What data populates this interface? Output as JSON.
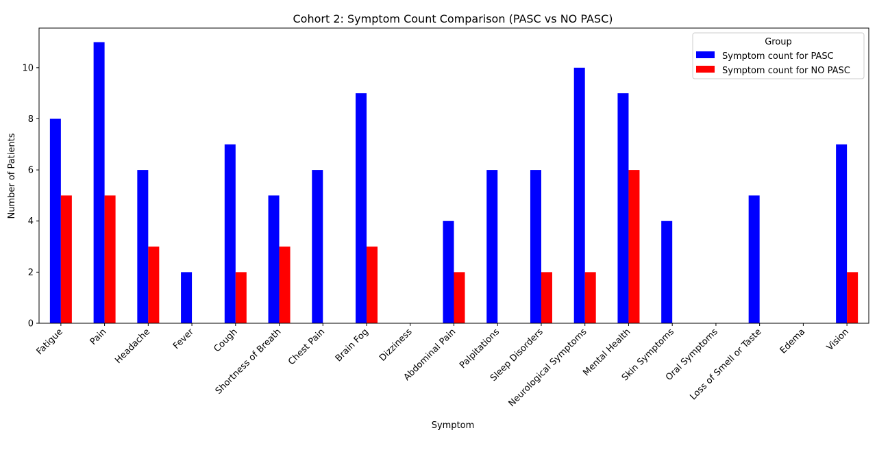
{
  "chart_data": {
    "type": "bar",
    "title": "Cohort 2: Symptom Count Comparison (PASC vs NO PASC)",
    "xlabel": "Symptom",
    "ylabel": "Number of Patients",
    "ylim": [
      0,
      11.55
    ],
    "yticks": [
      0,
      2,
      4,
      6,
      8,
      10
    ],
    "grid": false,
    "legend": {
      "title": "Group",
      "placement": "top-right"
    },
    "categories": [
      "Fatigue",
      "Pain",
      "Headache",
      "Fever",
      "Cough",
      "Shortness of Breath",
      "Chest Pain",
      "Brain Fog",
      "Dizziness",
      "Abdominal Pain",
      "Palpitations",
      "Sleep Disorders",
      "Neurological Symptoms",
      "Mental Health",
      "Skin Symptoms",
      "Oral Symptoms",
      "Loss of Smell or Taste",
      "Edema",
      "Vision"
    ],
    "series": [
      {
        "name": "Symptom count for PASC",
        "color": "#0000ff",
        "values": [
          8,
          11,
          6,
          2,
          7,
          5,
          6,
          9,
          0,
          4,
          6,
          6,
          10,
          9,
          4,
          0,
          5,
          0,
          7
        ]
      },
      {
        "name": "Symptom count for NO PASC",
        "color": "#ff0000",
        "values": [
          5,
          5,
          3,
          0,
          2,
          3,
          0,
          3,
          0,
          2,
          0,
          2,
          2,
          6,
          0,
          0,
          0,
          0,
          2
        ]
      }
    ]
  }
}
